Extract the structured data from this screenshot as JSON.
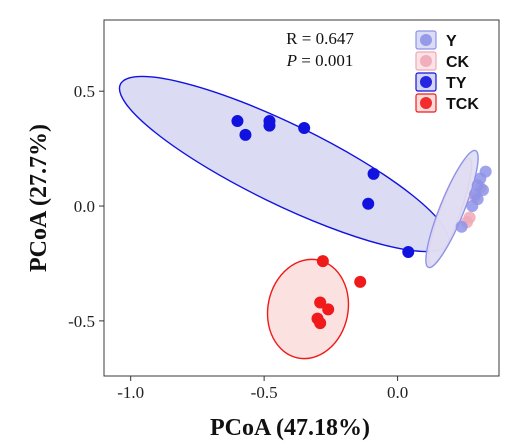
{
  "chart_data": {
    "type": "scatter",
    "xlabel": "PCoA (47.18%)",
    "ylabel": "PCoA (27.7%)",
    "xlim": [
      -1.1,
      0.38
    ],
    "ylim": [
      -0.74,
      0.81
    ],
    "x_ticks": [
      -1.0,
      -0.5,
      0.0
    ],
    "x_tick_labels": [
      "-1.0",
      "-0.5",
      "0.0"
    ],
    "y_ticks": [
      -0.5,
      0.0,
      0.5
    ],
    "y_tick_labels": [
      "-0.5",
      "0.0",
      "0.5"
    ],
    "grid": false,
    "legend_position": "top-right",
    "annotation": {
      "r_text": "R = 0.647",
      "p_label": "P",
      "p_value": " = 0.001"
    },
    "series": [
      {
        "name": "Y",
        "color": "#8e93e8",
        "fill": "#dcdcf5",
        "points": [
          [
            0.33,
            0.15
          ],
          [
            0.31,
            0.12
          ],
          [
            0.3,
            0.09
          ],
          [
            0.32,
            0.07
          ],
          [
            0.29,
            0.05
          ],
          [
            0.3,
            0.03
          ],
          [
            0.28,
            0.0
          ],
          [
            0.24,
            -0.09
          ]
        ]
      },
      {
        "name": "CK",
        "color": "#f0a8b6",
        "fill": "#fbe3e8",
        "points": [
          [
            0.31,
            0.08
          ],
          [
            0.29,
            0.04
          ],
          [
            0.27,
            -0.05
          ],
          [
            0.26,
            -0.07
          ]
        ]
      },
      {
        "name": "TY",
        "color": "#1212e0",
        "fill": "#d5d5f2",
        "points": [
          [
            -0.6,
            0.37
          ],
          [
            -0.57,
            0.31
          ],
          [
            -0.48,
            0.35
          ],
          [
            -0.48,
            0.37
          ],
          [
            -0.35,
            0.34
          ],
          [
            -0.09,
            0.14
          ],
          [
            -0.11,
            0.01
          ],
          [
            0.04,
            -0.2
          ]
        ]
      },
      {
        "name": "TCK",
        "color": "#f01a1a",
        "fill": "#fbdcdc",
        "points": [
          [
            -0.28,
            -0.24
          ],
          [
            -0.14,
            -0.33
          ],
          [
            -0.29,
            -0.42
          ],
          [
            -0.26,
            -0.45
          ],
          [
            -0.3,
            -0.49
          ],
          [
            -0.29,
            -0.51
          ]
        ]
      }
    ]
  }
}
